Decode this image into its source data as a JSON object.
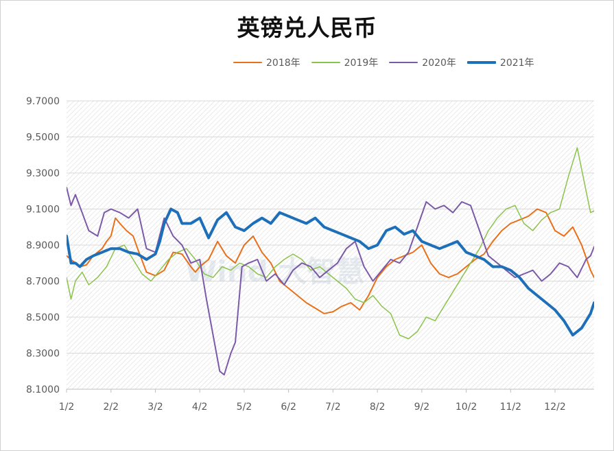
{
  "chart_data": {
    "type": "line",
    "title": "英镑兑人民币",
    "xlabel": "",
    "ylabel": "",
    "ylim": [
      8.1,
      9.7
    ],
    "yticks": [
      "9.7000",
      "9.5000",
      "9.3000",
      "9.1000",
      "8.9000",
      "8.7000",
      "8.5000",
      "8.3000",
      "8.1000"
    ],
    "x_ticks": [
      "1/2",
      "2/2",
      "3/2",
      "4/2",
      "5/2",
      "6/2",
      "7/2",
      "8/2",
      "9/2",
      "10/2",
      "11/2",
      "12/2"
    ],
    "watermark": "Wind 大智慧",
    "series": [
      {
        "name": "2018年",
        "color": "#e8701a",
        "width": 2,
        "x": [
          0,
          0.1,
          0.2,
          0.3,
          0.45,
          0.6,
          0.8,
          0.9,
          1.0,
          1.1,
          1.2,
          1.35,
          1.5,
          1.6,
          1.8,
          2.0,
          2.2,
          2.4,
          2.6,
          2.8,
          2.9,
          3.0,
          3.2,
          3.4,
          3.6,
          3.8,
          4.0,
          4.2,
          4.4,
          4.6,
          4.8,
          5.0,
          5.2,
          5.4,
          5.6,
          5.8,
          6.0,
          6.2,
          6.4,
          6.6,
          6.8,
          7.0,
          7.2,
          7.4,
          7.6,
          7.8,
          8.0,
          8.2,
          8.4,
          8.6,
          8.8,
          9.0,
          9.2,
          9.4,
          9.6,
          9.8,
          10.0,
          10.2,
          10.4,
          10.6,
          10.8,
          11.0,
          11.2,
          11.4,
          11.6,
          11.8,
          11.88
        ],
        "y": [
          8.84,
          8.82,
          8.8,
          8.78,
          8.79,
          8.84,
          8.88,
          8.92,
          8.95,
          9.05,
          9.02,
          8.98,
          8.95,
          8.88,
          8.75,
          8.73,
          8.76,
          8.86,
          8.85,
          8.78,
          8.75,
          8.78,
          8.82,
          8.92,
          8.84,
          8.8,
          8.9,
          8.95,
          8.86,
          8.8,
          8.7,
          8.66,
          8.62,
          8.58,
          8.55,
          8.52,
          8.53,
          8.56,
          8.58,
          8.54,
          8.62,
          8.72,
          8.78,
          8.82,
          8.84,
          8.86,
          8.9,
          8.8,
          8.74,
          8.72,
          8.74,
          8.78,
          8.82,
          8.85,
          8.92,
          8.98,
          9.02,
          9.04,
          9.06,
          9.1,
          9.08,
          8.98,
          8.95,
          9.0,
          8.9,
          8.76,
          8.72
        ]
      },
      {
        "name": "2019年",
        "color": "#8bc34a",
        "width": 1.5,
        "x": [
          0,
          0.1,
          0.2,
          0.35,
          0.5,
          0.7,
          0.9,
          1.1,
          1.3,
          1.5,
          1.7,
          1.9,
          2.1,
          2.3,
          2.5,
          2.7,
          2.9,
          3.1,
          3.3,
          3.5,
          3.7,
          3.9,
          4.1,
          4.3,
          4.5,
          4.7,
          4.9,
          5.1,
          5.3,
          5.5,
          5.7,
          5.9,
          6.1,
          6.3,
          6.5,
          6.7,
          6.9,
          7.1,
          7.3,
          7.5,
          7.7,
          7.9,
          8.1,
          8.3,
          8.5,
          8.7,
          8.9,
          9.1,
          9.3,
          9.5,
          9.7,
          9.9,
          10.1,
          10.3,
          10.5,
          10.7,
          10.9,
          11.1,
          11.3,
          11.5,
          11.7,
          11.8,
          11.88
        ],
        "y": [
          8.72,
          8.6,
          8.7,
          8.75,
          8.68,
          8.72,
          8.78,
          8.88,
          8.9,
          8.82,
          8.74,
          8.7,
          8.76,
          8.82,
          8.86,
          8.88,
          8.82,
          8.74,
          8.72,
          8.78,
          8.76,
          8.8,
          8.78,
          8.74,
          8.72,
          8.78,
          8.82,
          8.85,
          8.82,
          8.76,
          8.78,
          8.74,
          8.7,
          8.66,
          8.6,
          8.58,
          8.62,
          8.56,
          8.52,
          8.4,
          8.38,
          8.42,
          8.5,
          8.48,
          8.56,
          8.64,
          8.72,
          8.8,
          8.88,
          8.98,
          9.05,
          9.1,
          9.12,
          9.02,
          8.98,
          9.04,
          9.08,
          9.1,
          9.28,
          9.44,
          9.2,
          9.08,
          9.09
        ]
      },
      {
        "name": "2020年",
        "color": "#7b59a8",
        "width": 2,
        "x": [
          0,
          0.1,
          0.2,
          0.35,
          0.5,
          0.7,
          0.85,
          1.0,
          1.2,
          1.4,
          1.6,
          1.8,
          2.0,
          2.2,
          2.4,
          2.6,
          2.8,
          3.0,
          3.15,
          3.3,
          3.45,
          3.55,
          3.6,
          3.7,
          3.8,
          3.95,
          4.1,
          4.3,
          4.5,
          4.7,
          4.9,
          5.1,
          5.3,
          5.5,
          5.7,
          5.9,
          6.1,
          6.3,
          6.5,
          6.7,
          6.9,
          7.1,
          7.3,
          7.5,
          7.7,
          7.9,
          8.1,
          8.3,
          8.5,
          8.7,
          8.9,
          9.1,
          9.3,
          9.5,
          9.7,
          9.9,
          10.1,
          10.3,
          10.5,
          10.7,
          10.9,
          11.1,
          11.3,
          11.5,
          11.7,
          11.8,
          11.88
        ],
        "y": [
          9.22,
          9.12,
          9.18,
          9.08,
          8.98,
          8.95,
          9.08,
          9.1,
          9.08,
          9.05,
          9.1,
          8.88,
          8.86,
          9.05,
          8.95,
          8.9,
          8.8,
          8.82,
          8.6,
          8.4,
          8.2,
          8.18,
          8.22,
          8.3,
          8.36,
          8.78,
          8.8,
          8.82,
          8.7,
          8.74,
          8.68,
          8.76,
          8.8,
          8.78,
          8.72,
          8.76,
          8.8,
          8.88,
          8.92,
          8.78,
          8.7,
          8.76,
          8.82,
          8.8,
          8.86,
          9.0,
          9.14,
          9.1,
          9.12,
          9.08,
          9.14,
          9.12,
          8.98,
          8.84,
          8.8,
          8.76,
          8.72,
          8.74,
          8.76,
          8.7,
          8.74,
          8.8,
          8.78,
          8.72,
          8.82,
          8.84,
          8.89
        ]
      },
      {
        "name": "2021年",
        "color": "#1c6fb8",
        "width": 4,
        "x": [
          0,
          0.1,
          0.2,
          0.3,
          0.45,
          0.6,
          0.8,
          1.0,
          1.2,
          1.4,
          1.6,
          1.8,
          2.0,
          2.1,
          2.2,
          2.35,
          2.5,
          2.6,
          2.8,
          3.0,
          3.2,
          3.4,
          3.6,
          3.8,
          4.0,
          4.2,
          4.4,
          4.6,
          4.8,
          5.0,
          5.2,
          5.4,
          5.6,
          5.8,
          6.0,
          6.2,
          6.4,
          6.6,
          6.8,
          7.0,
          7.2,
          7.4,
          7.6,
          7.8,
          8.0,
          8.2,
          8.4,
          8.6,
          8.8,
          9.0,
          9.2,
          9.4,
          9.6,
          9.8,
          10.0,
          10.2,
          10.4,
          10.6,
          10.8,
          11.0,
          11.2,
          11.4,
          11.6,
          11.8,
          11.88
        ],
        "y": [
          8.95,
          8.8,
          8.8,
          8.78,
          8.82,
          8.84,
          8.86,
          8.88,
          8.88,
          8.86,
          8.85,
          8.82,
          8.85,
          8.92,
          9.02,
          9.1,
          9.08,
          9.02,
          9.02,
          9.05,
          8.94,
          9.04,
          9.08,
          9.0,
          8.98,
          9.02,
          9.05,
          9.02,
          9.08,
          9.06,
          9.04,
          9.02,
          9.05,
          9.0,
          8.98,
          8.96,
          8.94,
          8.92,
          8.88,
          8.9,
          8.98,
          9.0,
          8.96,
          8.98,
          8.92,
          8.9,
          8.88,
          8.9,
          8.92,
          8.86,
          8.84,
          8.82,
          8.78,
          8.78,
          8.76,
          8.72,
          8.66,
          8.62,
          8.58,
          8.54,
          8.48,
          8.4,
          8.44,
          8.52,
          8.58
        ]
      }
    ]
  }
}
